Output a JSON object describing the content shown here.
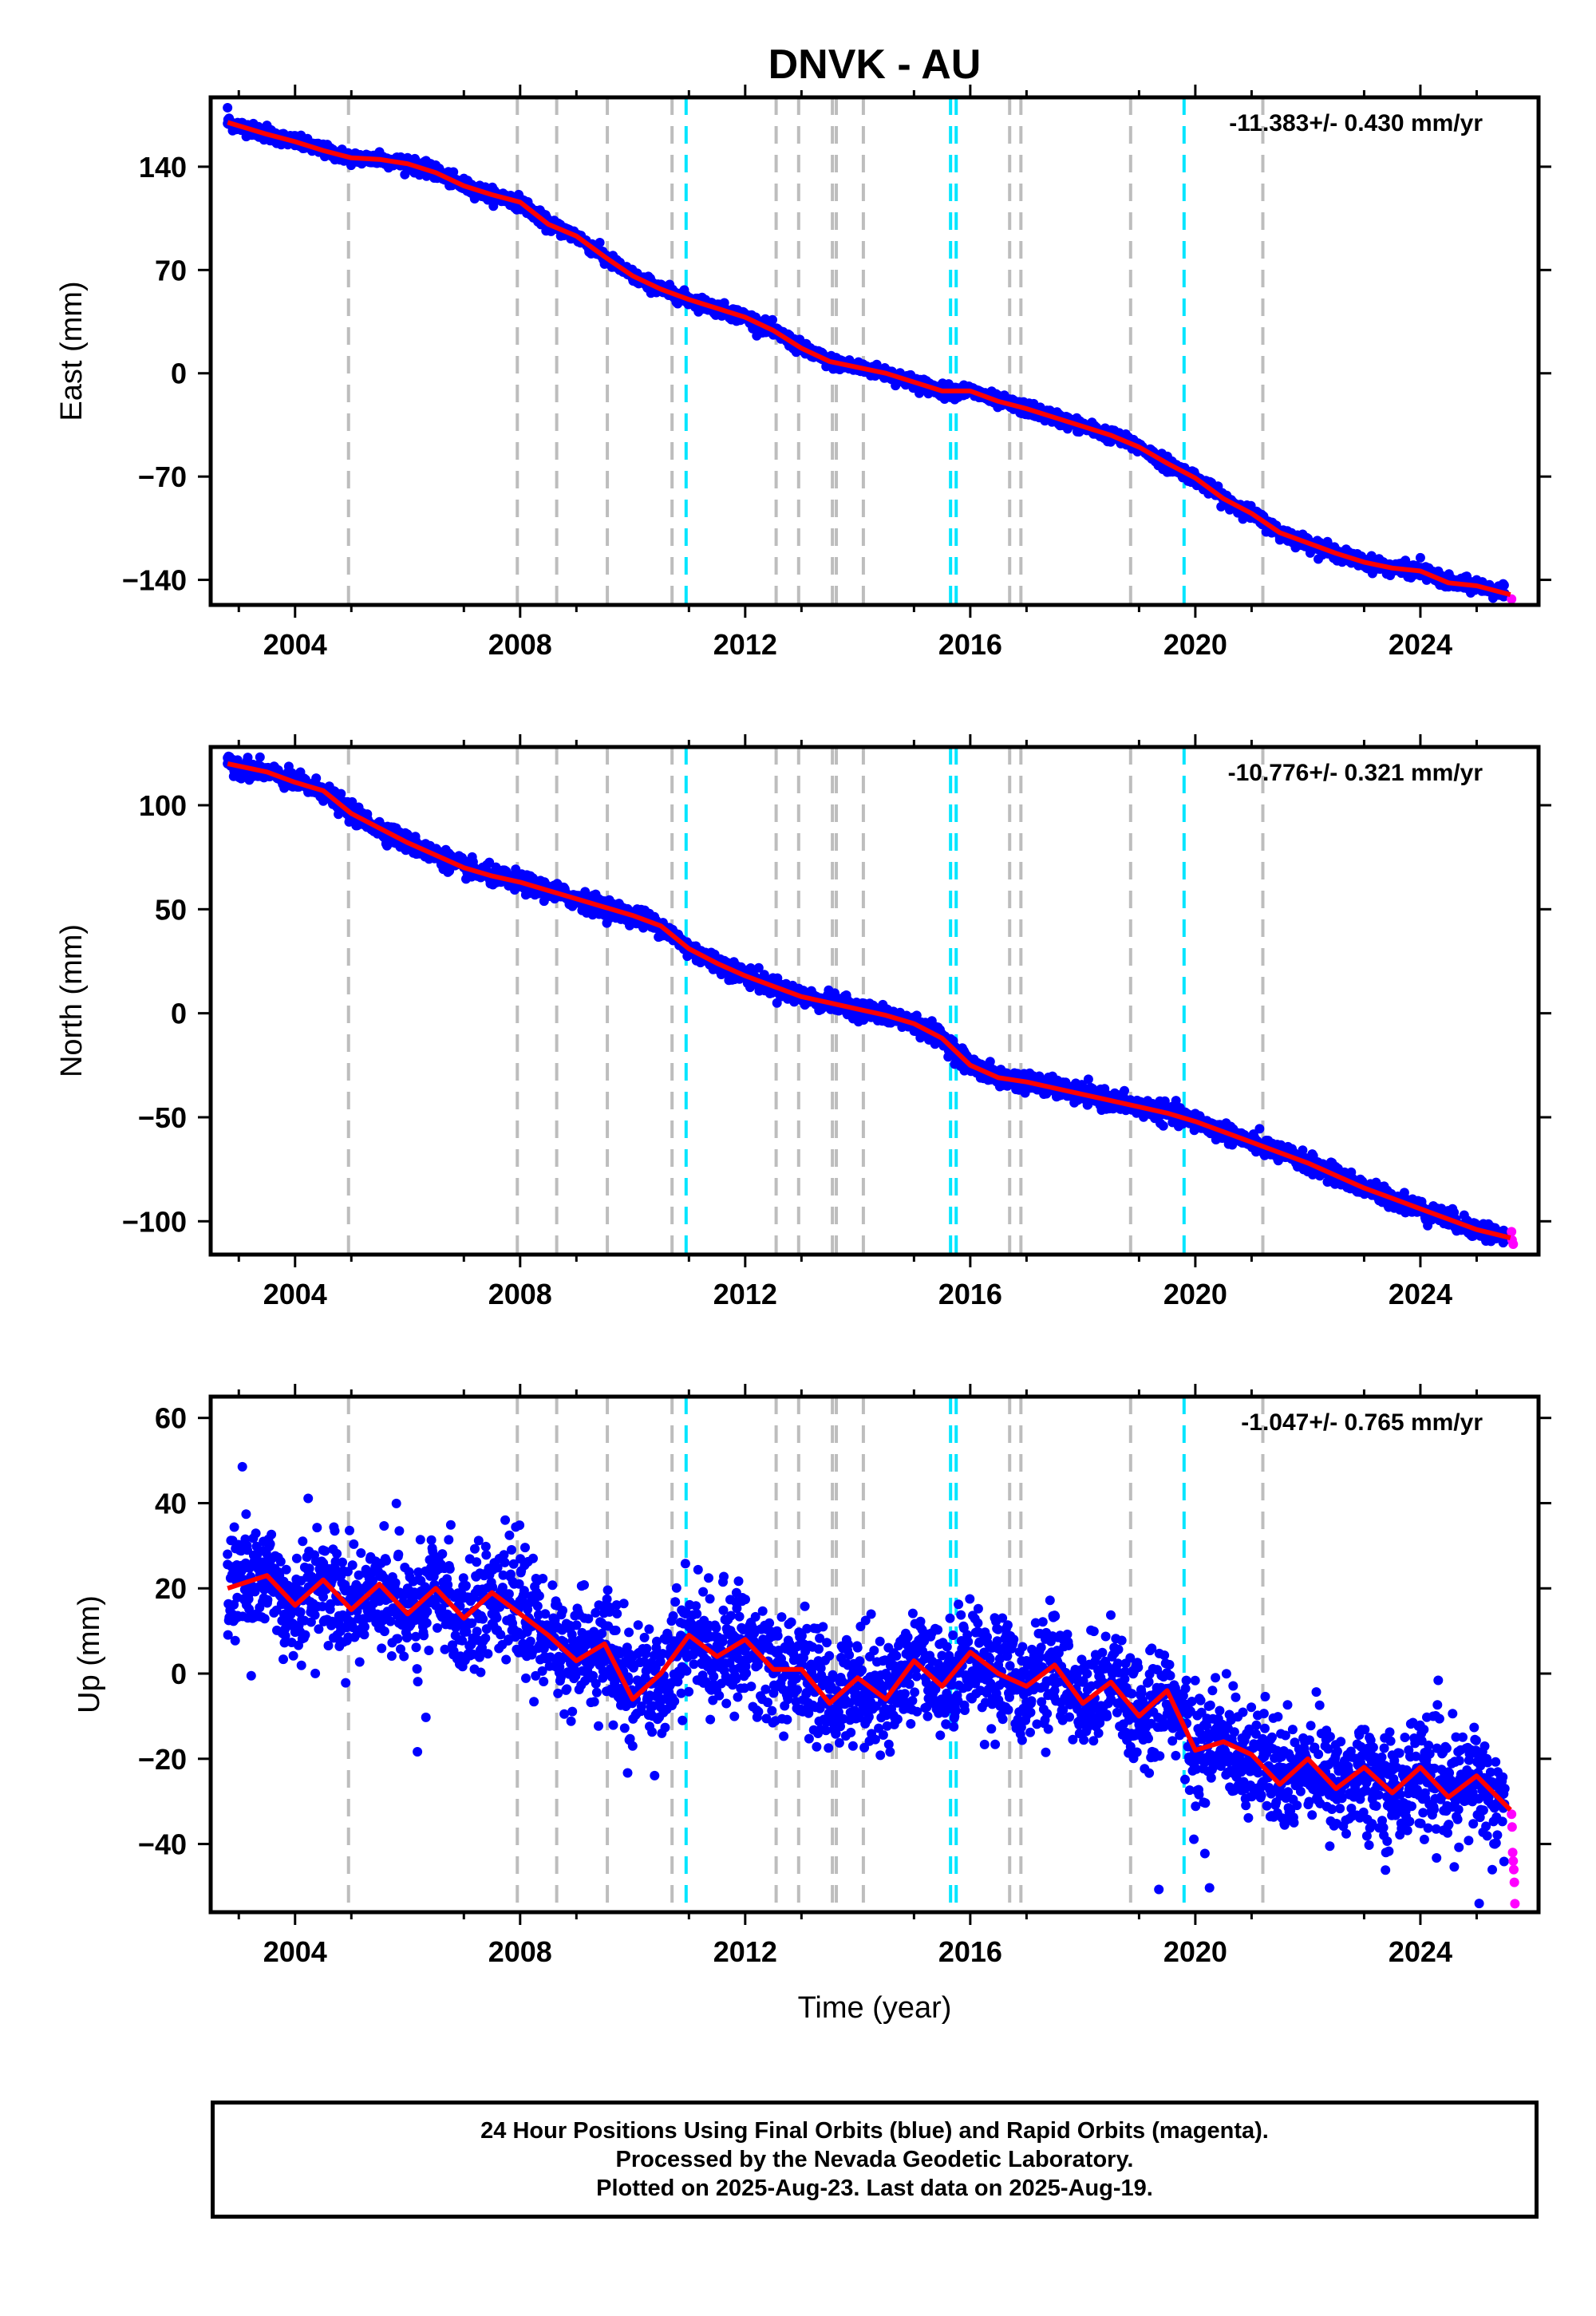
{
  "title": "DNVK - AU",
  "colors": {
    "final_orbits": "#0000ff",
    "rapid_orbits": "#ff00ff",
    "model": "#ff0000",
    "event_gray": "#bdbdbd",
    "event_cyan": "#00e5ff"
  },
  "chart_data": [
    {
      "type": "scatter",
      "name": "east",
      "ylabel": "East (mm)",
      "xlabel": "",
      "xlim": [
        2002.5,
        2026.1
      ],
      "ylim": [
        -157,
        187
      ],
      "xticks": [
        2004,
        2008,
        2012,
        2016,
        2020,
        2024
      ],
      "yticks": [
        140,
        70,
        0,
        -70,
        -140
      ],
      "ytick_labels": [
        "140",
        "70",
        "0",
        "−70",
        "−140"
      ],
      "rate_label": "-11.383+/- 0.430 mm/yr",
      "series": [
        {
          "role": "final_orbits",
          "x": [
            2002.8,
            2003.5,
            2004.0,
            2004.5,
            2005.0,
            2005.5,
            2006.0,
            2006.5,
            2007.0,
            2007.5,
            2008.0,
            2008.5,
            2009.0,
            2009.5,
            2010.0,
            2010.5,
            2011.0,
            2011.5,
            2012.0,
            2012.5,
            2013.0,
            2013.5,
            2014.0,
            2014.5,
            2015.0,
            2015.5,
            2016.0,
            2016.5,
            2017.0,
            2017.5,
            2018.0,
            2018.5,
            2019.0,
            2019.5,
            2020.0,
            2020.5,
            2021.0,
            2021.5,
            2022.0,
            2022.5,
            2023.0,
            2023.5,
            2024.0,
            2024.5,
            2025.0,
            2025.5
          ],
          "y": [
            180,
            168,
            161,
            153,
            148,
            150,
            146,
            141,
            132,
            124,
            118,
            99,
            93,
            74,
            66,
            56,
            50,
            43,
            40,
            26,
            16,
            6,
            2,
            1,
            -7,
            -15,
            -10,
            -18,
            -24,
            -32,
            -37,
            -44,
            -51,
            -67,
            -72,
            -86,
            -96,
            -111,
            -112,
            -122,
            -128,
            -133,
            -125,
            -142,
            -140,
            -151
          ]
        },
        {
          "role": "rapid_orbits",
          "x": [
            2025.62,
            2025.63,
            2025.65
          ],
          "y": [
            -153,
            -160,
            -162
          ]
        },
        {
          "role": "model",
          "x": [
            2002.8,
            2003.5,
            2004.0,
            2004.5,
            2005.0,
            2005.5,
            2006.0,
            2006.5,
            2007.0,
            2007.5,
            2008.0,
            2008.5,
            2009.0,
            2009.5,
            2010.0,
            2010.5,
            2011.0,
            2011.5,
            2012.0,
            2012.5,
            2013.0,
            2013.5,
            2014.0,
            2014.5,
            2015.0,
            2015.5,
            2016.0,
            2016.5,
            2017.0,
            2017.5,
            2018.0,
            2018.5,
            2019.0,
            2019.5,
            2020.0,
            2020.5,
            2021.0,
            2021.5,
            2022.0,
            2022.5,
            2023.0,
            2023.5,
            2024.0,
            2024.5,
            2025.0,
            2025.6
          ],
          "y": [
            170,
            162,
            157,
            151,
            146,
            145,
            142,
            136,
            127,
            121,
            116,
            101,
            93,
            79,
            66,
            57,
            50,
            44,
            38,
            29,
            17,
            8,
            4,
            0,
            -6,
            -12,
            -12,
            -19,
            -24,
            -30,
            -36,
            -42,
            -50,
            -61,
            -71,
            -85,
            -95,
            -108,
            -115,
            -122,
            -128,
            -132,
            -134,
            -142,
            -144,
            -150
          ]
        }
      ],
      "events_gray": [
        2004.95,
        2007.95,
        2008.65,
        2009.55,
        2010.7,
        2012.55,
        2012.95,
        2013.55,
        2013.62,
        2014.1,
        2016.7,
        2016.9,
        2018.85,
        2021.2
      ],
      "events_cyan": [
        2010.95,
        2015.65,
        2015.75,
        2019.8
      ]
    },
    {
      "type": "scatter",
      "name": "north",
      "ylabel": "North (mm)",
      "xlabel": "",
      "xlim": [
        2002.5,
        2026.1
      ],
      "ylim": [
        -116,
        128
      ],
      "xticks": [
        2004,
        2008,
        2012,
        2016,
        2020,
        2024
      ],
      "yticks": [
        100,
        50,
        0,
        -50,
        -100
      ],
      "ytick_labels": [
        "100",
        "50",
        "0",
        "−50",
        "−100"
      ],
      "rate_label": "-10.776+/- 0.321 mm/yr",
      "series": [
        {
          "role": "final_orbits",
          "x": [
            2002.8,
            2003.5,
            2004.0,
            2004.5,
            2005.0,
            2005.5,
            2006.0,
            2006.5,
            2007.0,
            2007.5,
            2008.0,
            2008.5,
            2009.0,
            2009.5,
            2010.0,
            2010.5,
            2011.0,
            2011.5,
            2012.0,
            2012.5,
            2013.0,
            2013.5,
            2014.0,
            2014.5,
            2015.0,
            2015.5,
            2016.0,
            2016.5,
            2017.0,
            2017.5,
            2018.0,
            2018.5,
            2019.0,
            2019.5,
            2020.0,
            2020.5,
            2021.0,
            2021.5,
            2022.0,
            2022.5,
            2023.0,
            2023.5,
            2024.0,
            2024.5,
            2025.0,
            2025.5
          ],
          "y": [
            120,
            117,
            111,
            108,
            96,
            88,
            81,
            75,
            70,
            67,
            63,
            59,
            55,
            51,
            48,
            42,
            29,
            23,
            18,
            14,
            9,
            5,
            2,
            0,
            -4,
            -10,
            -26,
            -31,
            -32,
            -36,
            -39,
            -42,
            -44,
            -48,
            -51,
            -57,
            -62,
            -67,
            -72,
            -78,
            -84,
            -89,
            -93,
            -97,
            -103,
            -107
          ]
        },
        {
          "role": "rapid_orbits",
          "x": [
            2025.62,
            2025.63,
            2025.65
          ],
          "y": [
            -105,
            -109,
            -111
          ]
        },
        {
          "role": "model",
          "x": [
            2002.8,
            2003.5,
            2004.0,
            2004.5,
            2005.0,
            2005.5,
            2006.0,
            2006.5,
            2007.0,
            2007.5,
            2008.0,
            2008.5,
            2009.0,
            2009.5,
            2010.0,
            2010.5,
            2011.0,
            2011.5,
            2012.0,
            2012.5,
            2013.0,
            2013.5,
            2014.0,
            2014.5,
            2015.0,
            2015.5,
            2016.0,
            2016.5,
            2017.0,
            2017.5,
            2018.0,
            2018.5,
            2019.0,
            2019.5,
            2020.0,
            2020.5,
            2021.0,
            2021.5,
            2022.0,
            2022.5,
            2023.0,
            2023.5,
            2024.0,
            2024.5,
            2025.0,
            2025.6
          ],
          "y": [
            120,
            116,
            111,
            107,
            96,
            89,
            82,
            76,
            70,
            66,
            63,
            59,
            55,
            51,
            47,
            42,
            31,
            24,
            18,
            13,
            8,
            5,
            2,
            -1,
            -5,
            -12,
            -25,
            -31,
            -33,
            -36,
            -39,
            -42,
            -45,
            -48,
            -52,
            -57,
            -62,
            -67,
            -72,
            -78,
            -84,
            -89,
            -94,
            -99,
            -104,
            -108
          ]
        }
      ],
      "events_gray": [
        2004.95,
        2007.95,
        2008.65,
        2009.55,
        2010.7,
        2012.55,
        2012.95,
        2013.55,
        2013.62,
        2014.1,
        2016.7,
        2016.9,
        2018.85,
        2021.2
      ],
      "events_cyan": [
        2010.95,
        2015.65,
        2015.75,
        2019.8
      ]
    },
    {
      "type": "scatter",
      "name": "up",
      "ylabel": "Up (mm)",
      "xlabel": "Time (year)",
      "xlim": [
        2002.5,
        2026.1
      ],
      "ylim": [
        -56,
        65
      ],
      "xticks": [
        2004,
        2008,
        2012,
        2016,
        2020,
        2024
      ],
      "yticks": [
        60,
        40,
        20,
        0,
        -20,
        -40
      ],
      "ytick_labels": [
        "60",
        "40",
        "20",
        "0",
        "−20",
        "−40"
      ],
      "rate_label": "-1.047+/- 0.765 mm/yr",
      "series": [
        {
          "role": "final_orbits",
          "x": [
            2002.8,
            2003.5,
            2004.0,
            2004.5,
            2005.0,
            2005.5,
            2006.0,
            2006.5,
            2007.0,
            2007.5,
            2008.0,
            2008.5,
            2009.0,
            2009.5,
            2010.0,
            2010.5,
            2011.0,
            2011.5,
            2012.0,
            2012.5,
            2013.0,
            2013.5,
            2014.0,
            2014.5,
            2015.0,
            2015.5,
            2016.0,
            2016.5,
            2017.0,
            2017.5,
            2018.0,
            2018.5,
            2019.0,
            2019.5,
            2020.0,
            2020.5,
            2021.0,
            2021.5,
            2022.0,
            2022.5,
            2023.0,
            2023.5,
            2024.0,
            2024.5,
            2025.0,
            2025.5
          ],
          "y": [
            28,
            22,
            20,
            18,
            19,
            17,
            20,
            16,
            18,
            14,
            16,
            8,
            6,
            0,
            4,
            -2,
            8,
            5,
            7,
            0,
            2,
            -3,
            2,
            0,
            3,
            1,
            5,
            2,
            3,
            -4,
            -2,
            -6,
            -8,
            -12,
            -16,
            -20,
            -22,
            -24,
            -22,
            -26,
            -24,
            -26,
            -22,
            -26,
            -24,
            -27
          ]
        },
        {
          "role": "rapid_orbits",
          "x": [
            2025.62,
            2025.63,
            2025.64,
            2025.65,
            2025.66,
            2025.67,
            2025.68
          ],
          "y": [
            -33,
            -36,
            -42,
            -44,
            -46,
            -49,
            -54
          ]
        },
        {
          "role": "model",
          "x": [
            2002.8,
            2003.5,
            2004.0,
            2004.5,
            2005.0,
            2005.5,
            2006.0,
            2006.5,
            2007.0,
            2007.5,
            2008.0,
            2008.5,
            2009.0,
            2009.5,
            2010.0,
            2010.5,
            2011.0,
            2011.5,
            2012.0,
            2012.5,
            2013.0,
            2013.5,
            2014.0,
            2014.5,
            2015.0,
            2015.5,
            2016.0,
            2016.5,
            2017.0,
            2017.5,
            2018.0,
            2018.5,
            2019.0,
            2019.5,
            2020.0,
            2020.5,
            2021.0,
            2021.5,
            2022.0,
            2022.5,
            2023.0,
            2023.5,
            2024.0,
            2024.5,
            2025.0,
            2025.6
          ],
          "y": [
            20,
            23,
            16,
            22,
            15,
            21,
            14,
            20,
            13,
            19,
            14,
            9,
            3,
            7,
            -6,
            0,
            9,
            4,
            8,
            1,
            1,
            -7,
            -1,
            -6,
            3,
            -3,
            5,
            0,
            -3,
            2,
            -7,
            -2,
            -10,
            -4,
            -18,
            -16,
            -19,
            -26,
            -20,
            -27,
            -22,
            -28,
            -22,
            -29,
            -24,
            -32
          ]
        }
      ],
      "events_gray": [
        2004.95,
        2007.95,
        2008.65,
        2009.55,
        2010.7,
        2012.55,
        2012.95,
        2013.55,
        2013.62,
        2014.1,
        2016.7,
        2016.9,
        2018.85,
        2021.2
      ],
      "events_cyan": [
        2010.95,
        2015.65,
        2015.75,
        2019.8
      ]
    }
  ],
  "caption": {
    "line1": "24 Hour Positions Using Final Orbits (blue) and Rapid Orbits (magenta).",
    "line2": "Processed by the Nevada Geodetic Laboratory.",
    "line3": "Plotted on 2025-Aug-23. Last data on 2025-Aug-19."
  }
}
